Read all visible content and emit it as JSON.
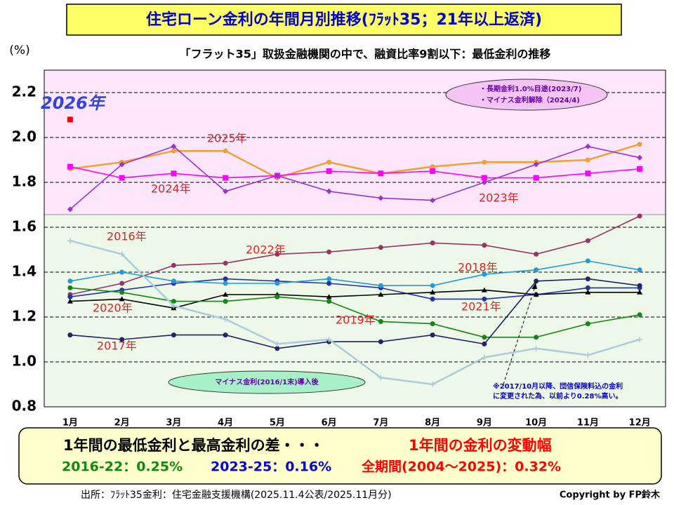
{
  "chart_data": {
    "type": "line",
    "title": "住宅ローン金利の年間月別推移(ﾌﾗｯﾄ35；21年以上返済)",
    "subtitle": "「フラット35」取扱金融機関の中で、融資比率9割以下：最低金利の推移",
    "y_label": "(%)",
    "categories": [
      "1月",
      "2月",
      "3月",
      "4月",
      "5月",
      "6月",
      "7月",
      "8月",
      "9月",
      "10月",
      "11月",
      "12月"
    ],
    "ylim": [
      0.8,
      2.3
    ],
    "yticks": [
      0.8,
      {
        "value": 1,
        "label": "1.0"
      },
      1.2,
      1.4,
      1.6,
      1.8,
      {
        "value": 2,
        "label": "2.0"
      },
      2.2
    ],
    "grid": true,
    "series": [
      {
        "name": "2026年",
        "color": "#ff0000",
        "marker": "square",
        "values": [
          2.08,
          null,
          null,
          null,
          null,
          null,
          null,
          null,
          null,
          null,
          null,
          null
        ]
      },
      {
        "name": "2025年",
        "color": "#f0a030",
        "marker": "circle",
        "values": [
          1.86,
          1.89,
          1.94,
          1.94,
          1.82,
          1.89,
          1.84,
          1.87,
          1.89,
          1.89,
          1.9,
          1.97
        ]
      },
      {
        "name": "2024年",
        "color": "#ff00ff",
        "marker": "square",
        "values": [
          1.87,
          1.82,
          1.84,
          1.82,
          1.83,
          1.85,
          1.84,
          1.85,
          1.82,
          1.82,
          1.84,
          1.86
        ]
      },
      {
        "name": "2023年",
        "color": "#9933cc",
        "marker": "diamond",
        "values": [
          1.68,
          1.88,
          1.96,
          1.76,
          1.83,
          1.76,
          1.73,
          1.72,
          1.8,
          1.88,
          1.96,
          1.91
        ]
      },
      {
        "name": "2022年",
        "color": "#993366",
        "marker": "circle",
        "values": [
          1.3,
          1.35,
          1.43,
          1.44,
          1.48,
          1.49,
          1.51,
          1.53,
          1.52,
          1.48,
          1.54,
          1.65
        ]
      },
      {
        "name": "2021年",
        "color": "#2233aa",
        "marker": "circle",
        "values": [
          1.29,
          1.32,
          1.35,
          1.37,
          1.36,
          1.35,
          1.33,
          1.28,
          1.28,
          1.3,
          1.33,
          1.33
        ]
      },
      {
        "name": "2020年",
        "color": "#000000",
        "marker": "triangle",
        "values": [
          1.27,
          1.28,
          1.24,
          1.3,
          1.3,
          1.29,
          1.3,
          1.31,
          1.32,
          1.3,
          1.31,
          1.31
        ]
      },
      {
        "name": "2019年",
        "color": "#118811",
        "marker": "circle",
        "values": [
          1.33,
          1.31,
          1.27,
          1.27,
          1.29,
          1.27,
          1.18,
          1.17,
          1.11,
          1.11,
          1.17,
          1.21
        ]
      },
      {
        "name": "2018年",
        "color": "#2299dd",
        "marker": "circle",
        "values": [
          1.36,
          1.4,
          1.36,
          1.35,
          1.35,
          1.37,
          1.34,
          1.34,
          1.39,
          1.41,
          1.45,
          1.41
        ]
      },
      {
        "name": "2017年",
        "color": "#222266",
        "marker": "circle",
        "values": [
          1.12,
          1.1,
          1.12,
          1.12,
          1.06,
          1.09,
          1.09,
          1.12,
          1.08,
          1.36,
          1.37,
          1.34
        ]
      },
      {
        "name": "2016年",
        "color": "#aaccdd",
        "marker": "plus",
        "values": [
          1.54,
          1.48,
          1.25,
          1.19,
          1.08,
          1.1,
          0.93,
          0.9,
          1.02,
          1.06,
          1.03,
          1.1
        ]
      }
    ],
    "annotations": [
      "・長期金利1.0%目途(2023/7)",
      "・マイナス金利解除（2024/4)",
      "マイナス金利(2016/1末)導入後",
      "※2017/10月以降、団信保険料込の金利",
      "に変更された為、以前より0.28%高い。"
    ],
    "summary": {
      "heading": "1年間の最低金利と最高金利の差・・・",
      "heading_red": "1年間の金利の変動幅",
      "items": [
        "2016-22：0.25%",
        "2023-25：0.16%",
        "全期間(2004～2025)：0.32%"
      ]
    },
    "source": "出所：ﾌﾗｯﾄ35金利：住宅金融支援機構(2025.11.4公表/2025.11月分)",
    "copyright": "Copyright by FP鈴木"
  }
}
